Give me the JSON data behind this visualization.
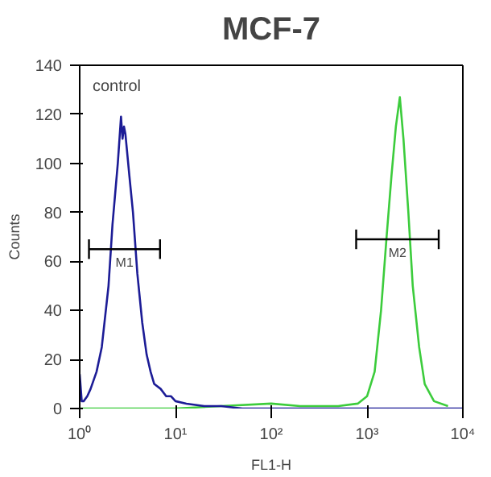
{
  "chart_data": {
    "type": "line",
    "title": "MCF-7",
    "xlabel": "FL1-H",
    "ylabel": "Counts",
    "log": "x",
    "xlim": [
      1,
      10000
    ],
    "ylim": [
      0,
      140
    ],
    "xticks": [
      {
        "value": 1,
        "label": "10⁰"
      },
      {
        "value": 10,
        "label": "10¹"
      },
      {
        "value": 100,
        "label": "10²"
      },
      {
        "value": 1000,
        "label": "10³"
      },
      {
        "value": 10000,
        "label": "10⁴"
      }
    ],
    "yticks": [
      0,
      20,
      40,
      60,
      80,
      100,
      120,
      140
    ],
    "grid": false,
    "legend": false,
    "marker": "none",
    "line_style": "solid",
    "annotations": [
      "control"
    ],
    "series": [
      {
        "color": "#3ccc3c",
        "x": [
          1,
          10,
          30,
          100,
          200,
          500,
          800,
          1000,
          1200,
          1400,
          1600,
          1800,
          2000,
          2200,
          2400,
          2700,
          3000,
          3500,
          4000,
          5000,
          7000
        ],
        "values": [
          0,
          0,
          1,
          2,
          1,
          1,
          2,
          5,
          15,
          40,
          70,
          95,
          115,
          127,
          110,
          80,
          50,
          25,
          10,
          3,
          1
        ]
      },
      {
        "color": "#1c1c96",
        "x": [
          1,
          1.05,
          1.1,
          1.2,
          1.3,
          1.5,
          1.7,
          2.0,
          2.2,
          2.5,
          2.7,
          2.8,
          2.9,
          3.0,
          3.3,
          3.6,
          4.0,
          4.5,
          5,
          5.5,
          6,
          7,
          8,
          9,
          10,
          13,
          20,
          30,
          50,
          100,
          1000,
          10000
        ],
        "values": [
          14,
          3,
          3,
          5,
          8,
          15,
          25,
          50,
          75,
          100,
          119,
          110,
          115,
          112,
          95,
          80,
          55,
          35,
          22,
          15,
          10,
          8,
          5,
          5,
          3,
          2,
          1,
          1,
          0,
          0,
          0,
          0
        ]
      },
      {
        "name": "M1",
        "color": "#000000",
        "x": [
          1.25,
          6.9
        ],
        "values": [
          65,
          65
        ],
        "errors": [
          4,
          4
        ]
      },
      {
        "name": "M2",
        "color": "#000000",
        "x": [
          770,
          5600
        ],
        "values": [
          69,
          69
        ],
        "errors": [
          4,
          4
        ]
      }
    ]
  }
}
